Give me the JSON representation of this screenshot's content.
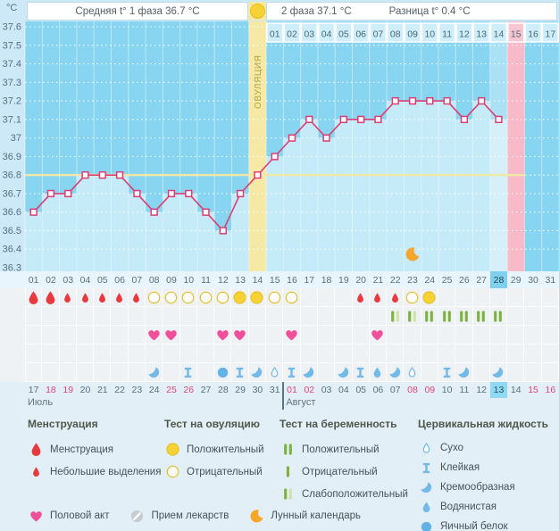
{
  "header": {
    "unit": "°C",
    "phase1": "Средняя t° 1 фаза 36.7 °C",
    "phase2": "2 фаза 37.1 °C",
    "difference": "Разница t° 0.4 °C"
  },
  "chart_data": {
    "type": "line",
    "title": "Basal body temperature chart",
    "ylabel": "°C",
    "ylim": [
      36.3,
      37.6
    ],
    "ytick_labels": [
      "37.6",
      "37.5",
      "37.4",
      "37.3",
      "37.2",
      "37.1",
      "37",
      "36.9",
      "36.8",
      "36.7",
      "36.6",
      "36.5",
      "36.4",
      "36.3"
    ],
    "days_in_cycle": 31,
    "cycle_day_labels": [
      "01",
      "02",
      "03",
      "04",
      "05",
      "06",
      "07",
      "08",
      "09",
      "10",
      "11",
      "12",
      "13",
      "14",
      "15",
      "16",
      "17",
      "18",
      "19",
      "20",
      "21",
      "22",
      "23",
      "24",
      "25",
      "26",
      "27",
      "28",
      "29",
      "30",
      "31"
    ],
    "dpo_labels": [
      "01",
      "02",
      "03",
      "04",
      "05",
      "06",
      "07",
      "08",
      "09",
      "10",
      "11",
      "12",
      "13",
      "14",
      "15",
      "16",
      "17"
    ],
    "dpo_start_day": 15,
    "ovulation_day": 14,
    "ovulation_label": "ОВУЛЯЦИЯ",
    "coverline": 36.8,
    "highlight_current_day": 28,
    "pink_highlight_day": 29,
    "moon_day": 23,
    "temperatures": [
      {
        "day": 1,
        "t": 36.6
      },
      {
        "day": 2,
        "t": 36.7
      },
      {
        "day": 3,
        "t": 36.7
      },
      {
        "day": 4,
        "t": 36.8
      },
      {
        "day": 5,
        "t": 36.8
      },
      {
        "day": 6,
        "t": 36.8
      },
      {
        "day": 7,
        "t": 36.7
      },
      {
        "day": 8,
        "t": 36.6
      },
      {
        "day": 9,
        "t": 36.7
      },
      {
        "day": 10,
        "t": 36.7
      },
      {
        "day": 11,
        "t": 36.6
      },
      {
        "day": 12,
        "t": 36.5
      },
      {
        "day": 13,
        "t": 36.7
      },
      {
        "day": 14,
        "t": 36.8
      },
      {
        "day": 15,
        "t": 36.9
      },
      {
        "day": 16,
        "t": 37.0
      },
      {
        "day": 17,
        "t": 37.1
      },
      {
        "day": 18,
        "t": 37.0
      },
      {
        "day": 19,
        "t": 37.1
      },
      {
        "day": 20,
        "t": 37.1
      },
      {
        "day": 21,
        "t": 37.1
      },
      {
        "day": 22,
        "t": 37.2
      },
      {
        "day": 23,
        "t": 37.2
      },
      {
        "day": 24,
        "t": 37.2
      },
      {
        "day": 25,
        "t": 37.2
      },
      {
        "day": 26,
        "t": 37.1
      },
      {
        "day": 27,
        "t": 37.2
      },
      {
        "day": 28,
        "t": 37.1
      }
    ]
  },
  "rows": {
    "menstruation_and_ovulation_tests": [
      {
        "day": 1,
        "icon": "drop-large"
      },
      {
        "day": 2,
        "icon": "drop-large"
      },
      {
        "day": 3,
        "icon": "drop-small"
      },
      {
        "day": 4,
        "icon": "drop-small"
      },
      {
        "day": 5,
        "icon": "drop-small"
      },
      {
        "day": 6,
        "icon": "drop-small"
      },
      {
        "day": 7,
        "icon": "drop-small"
      },
      {
        "day": 8,
        "icon": "test-negative"
      },
      {
        "day": 9,
        "icon": "test-negative"
      },
      {
        "day": 10,
        "icon": "test-negative"
      },
      {
        "day": 11,
        "icon": "test-negative"
      },
      {
        "day": 12,
        "icon": "test-negative"
      },
      {
        "day": 13,
        "icon": "test-positive"
      },
      {
        "day": 14,
        "icon": "test-positive"
      },
      {
        "day": 15,
        "icon": "test-negative"
      },
      {
        "day": 16,
        "icon": "test-negative"
      },
      {
        "day": 20,
        "icon": "drop-small"
      },
      {
        "day": 21,
        "icon": "drop-small"
      },
      {
        "day": 22,
        "icon": "drop-small"
      },
      {
        "day": 23,
        "icon": "test-negative"
      },
      {
        "day": 24,
        "icon": "test-positive"
      }
    ],
    "pregnancy_tests": [
      {
        "day": 22,
        "icon": "preg-weak"
      },
      {
        "day": 23,
        "icon": "preg-weak"
      },
      {
        "day": 24,
        "icon": "preg-positive"
      },
      {
        "day": 25,
        "icon": "preg-positive"
      },
      {
        "day": 26,
        "icon": "preg-positive"
      },
      {
        "day": 27,
        "icon": "preg-positive"
      },
      {
        "day": 28,
        "icon": "preg-positive"
      }
    ],
    "intercourse": [
      {
        "day": 8,
        "icon": "heart"
      },
      {
        "day": 9,
        "icon": "heart"
      },
      {
        "day": 12,
        "icon": "heart"
      },
      {
        "day": 13,
        "icon": "heart"
      },
      {
        "day": 16,
        "icon": "heart"
      },
      {
        "day": 21,
        "icon": "heart"
      }
    ],
    "medication": [],
    "cervical_fluid": [
      {
        "day": 8,
        "icon": "fluid-creamy"
      },
      {
        "day": 10,
        "icon": "fluid-sticky"
      },
      {
        "day": 12,
        "icon": "fluid-eggwhite"
      },
      {
        "day": 13,
        "icon": "fluid-sticky"
      },
      {
        "day": 14,
        "icon": "fluid-creamy"
      },
      {
        "day": 15,
        "icon": "fluid-dry"
      },
      {
        "day": 16,
        "icon": "fluid-sticky"
      },
      {
        "day": 17,
        "icon": "fluid-creamy"
      },
      {
        "day": 19,
        "icon": "fluid-creamy"
      },
      {
        "day": 20,
        "icon": "fluid-sticky"
      },
      {
        "day": 21,
        "icon": "fluid-watery"
      },
      {
        "day": 22,
        "icon": "fluid-creamy"
      },
      {
        "day": 23,
        "icon": "fluid-dry"
      },
      {
        "day": 25,
        "icon": "fluid-sticky"
      },
      {
        "day": 26,
        "icon": "fluid-creamy"
      },
      {
        "day": 28,
        "icon": "fluid-creamy"
      }
    ]
  },
  "calendar": {
    "dates": [
      {
        "label": "17",
        "weekend": false,
        "current": false
      },
      {
        "label": "18",
        "weekend": true,
        "current": false
      },
      {
        "label": "19",
        "weekend": true,
        "current": false
      },
      {
        "label": "20",
        "weekend": false,
        "current": false
      },
      {
        "label": "21",
        "weekend": false,
        "current": false
      },
      {
        "label": "22",
        "weekend": false,
        "current": false
      },
      {
        "label": "23",
        "weekend": false,
        "current": false
      },
      {
        "label": "24",
        "weekend": false,
        "current": false
      },
      {
        "label": "25",
        "weekend": true,
        "current": false
      },
      {
        "label": "26",
        "weekend": true,
        "current": false
      },
      {
        "label": "27",
        "weekend": false,
        "current": false
      },
      {
        "label": "28",
        "weekend": false,
        "current": false
      },
      {
        "label": "29",
        "weekend": false,
        "current": false
      },
      {
        "label": "30",
        "weekend": false,
        "current": false
      },
      {
        "label": "31",
        "weekend": false,
        "current": false
      },
      {
        "label": "01",
        "weekend": true,
        "current": false
      },
      {
        "label": "02",
        "weekend": true,
        "current": false
      },
      {
        "label": "03",
        "weekend": false,
        "current": false
      },
      {
        "label": "04",
        "weekend": false,
        "current": false
      },
      {
        "label": "05",
        "weekend": false,
        "current": false
      },
      {
        "label": "06",
        "weekend": false,
        "current": false
      },
      {
        "label": "07",
        "weekend": false,
        "current": false
      },
      {
        "label": "08",
        "weekend": true,
        "current": false
      },
      {
        "label": "09",
        "weekend": true,
        "current": false
      },
      {
        "label": "10",
        "weekend": false,
        "current": false
      },
      {
        "label": "11",
        "weekend": false,
        "current": false
      },
      {
        "label": "12",
        "weekend": false,
        "current": false
      },
      {
        "label": "13",
        "weekend": false,
        "current": true
      },
      {
        "label": "14",
        "weekend": false,
        "current": false
      },
      {
        "label": "15",
        "weekend": true,
        "current": false
      },
      {
        "label": "16",
        "weekend": true,
        "current": false
      }
    ],
    "months": [
      {
        "name": "Июль",
        "start_index": 0
      },
      {
        "name": "Август",
        "start_index": 15
      }
    ]
  },
  "legend": {
    "groups": [
      {
        "title": "Менструация",
        "items": [
          {
            "icon": "drop-large",
            "label": "Менструация"
          },
          {
            "icon": "drop-small",
            "label": "Небольшие выделения"
          }
        ]
      },
      {
        "title": "Тест на овуляцию",
        "items": [
          {
            "icon": "test-positive",
            "label": "Положительный"
          },
          {
            "icon": "test-negative",
            "label": "Отрицательный"
          }
        ]
      },
      {
        "title": "Тест на беременность",
        "items": [
          {
            "icon": "preg-positive",
            "label": "Положительный"
          },
          {
            "icon": "preg-negative",
            "label": "Отрицательный"
          },
          {
            "icon": "preg-weak",
            "label": "Слабоположительный"
          }
        ]
      },
      {
        "title": "Цервикальная жидкость",
        "items": [
          {
            "icon": "fluid-dry",
            "label": "Сухо"
          },
          {
            "icon": "fluid-sticky",
            "label": "Клейкая"
          },
          {
            "icon": "fluid-creamy",
            "label": "Кремообразная"
          },
          {
            "icon": "fluid-watery",
            "label": "Водянистая"
          },
          {
            "icon": "fluid-eggwhite",
            "label": "Яичный белок"
          }
        ]
      }
    ],
    "bottom": [
      {
        "icon": "heart",
        "label": "Половой акт"
      },
      {
        "icon": "pill",
        "label": "Прием лекарств"
      },
      {
        "icon": "moon",
        "label": "Лунный календарь"
      }
    ]
  },
  "colors": {
    "chart_bg": "#87d5f0",
    "chart_fill": "#c5eaf8",
    "dpo_cell": "#cdeefa",
    "pink_col": "#f8b9c9",
    "pink_cell": "#f8c5d2",
    "ovulation_col": "#f6e9a6",
    "ovulation_text": "#b3a23a",
    "coverline": "#eee8a9",
    "temp_line": "#dd3e72",
    "current_day_cell": "#7fd0ee",
    "current_date_cell": "#8edaf5",
    "weekend_text": "#e0457b",
    "drop_red": "#e8393f",
    "positive_yellow": "#f6d234",
    "positive_yellow_border": "#e2bd25",
    "green_dark": "#7cb23d",
    "green_pale": "#d2e2a4",
    "fluid_blue": "#73bae9",
    "fluid_blue_dark": "#62b2e8",
    "heart_pink": "#f0509b",
    "pill_gray": "#c7ccd1",
    "moon_orange": "#f7a62c"
  }
}
